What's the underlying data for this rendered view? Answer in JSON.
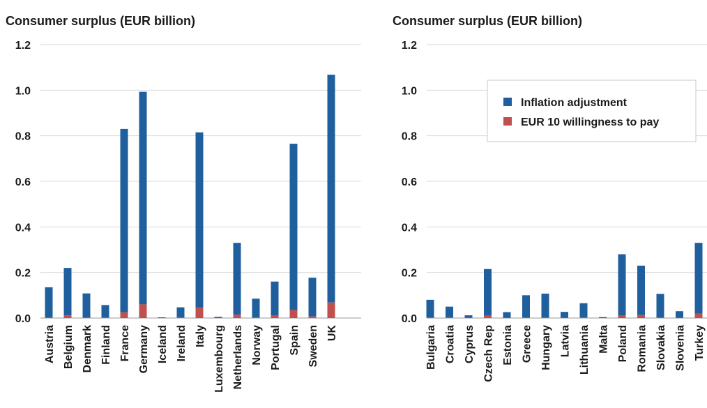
{
  "colors": {
    "inflation": "#1f5f9e",
    "wtp": "#c0504d"
  },
  "legend": {
    "items": [
      "Inflation adjustment",
      "EUR 10 willingness to pay"
    ],
    "placement": "top-right of right panel"
  },
  "chart_data": [
    {
      "type": "bar",
      "stacked": true,
      "title": "Consumer surplus (EUR billion)",
      "ylim": [
        0,
        1.2
      ],
      "yticks": [
        "0.0",
        "0.2",
        "0.4",
        "0.6",
        "0.8",
        "1.0",
        "1.2"
      ],
      "grid": true,
      "categories": [
        "Austria",
        "Belgium",
        "Denmark",
        "Finland",
        "France",
        "Germany",
        "Iceland",
        "Ireland",
        "Italy",
        "Luxembourg",
        "Netherlands",
        "Norway",
        "Portugal",
        "Spain",
        "Sweden",
        "UK"
      ],
      "series": [
        {
          "name": "EUR 10 willingness to pay",
          "values": [
            0.003,
            0.012,
            0.003,
            0.002,
            0.025,
            0.06,
            0.0,
            0.002,
            0.045,
            0.0,
            0.015,
            0.002,
            0.01,
            0.035,
            0.007,
            0.068
          ]
        },
        {
          "name": "Inflation adjustment",
          "values": [
            0.132,
            0.208,
            0.105,
            0.055,
            0.805,
            0.933,
            0.003,
            0.045,
            0.77,
            0.005,
            0.315,
            0.083,
            0.15,
            0.73,
            0.17,
            1.0
          ]
        }
      ]
    },
    {
      "type": "bar",
      "stacked": true,
      "title": "Consumer surplus (EUR billion)",
      "ylim": [
        0,
        1.2
      ],
      "yticks": [
        "0.0",
        "0.2",
        "0.4",
        "0.6",
        "0.8",
        "1.0",
        "1.2"
      ],
      "grid": true,
      "categories": [
        "Bulgaria",
        "Croatia",
        "Cyprus",
        "Czech Rep",
        "Estonia",
        "Greece",
        "Hungary",
        "Latvia",
        "Lithuania",
        "Malta",
        "Poland",
        "Romania",
        "Slovakia",
        "Slovenia",
        "Turkey"
      ],
      "series": [
        {
          "name": "EUR 10 willingness to pay",
          "values": [
            0.003,
            0.002,
            0.001,
            0.01,
            0.001,
            0.003,
            0.003,
            0.001,
            0.002,
            0.0,
            0.01,
            0.013,
            0.003,
            0.001,
            0.02
          ]
        },
        {
          "name": "Inflation adjustment",
          "values": [
            0.077,
            0.048,
            0.011,
            0.205,
            0.025,
            0.097,
            0.104,
            0.026,
            0.063,
            0.004,
            0.27,
            0.217,
            0.103,
            0.029,
            0.31
          ]
        }
      ]
    }
  ]
}
